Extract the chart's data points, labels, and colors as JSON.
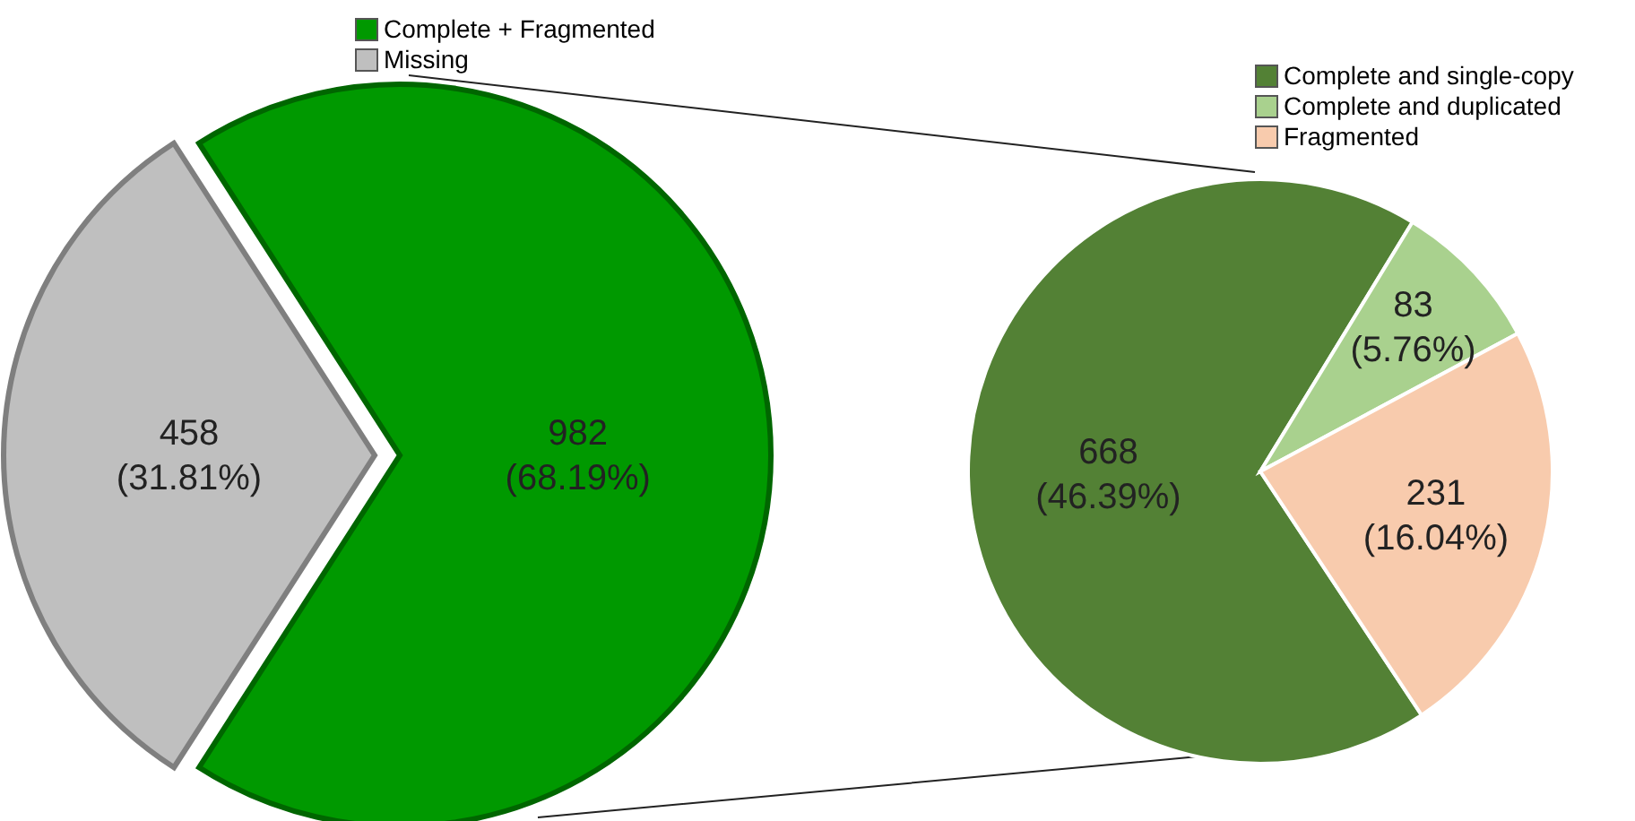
{
  "chart_data": [
    {
      "type": "pie",
      "categories": [
        "Complete + Fragmented",
        "Missing"
      ],
      "values": [
        982,
        458
      ],
      "colors": [
        "#009900",
        "#bfbfbf"
      ],
      "value_labels": [
        "982\n(68.19%)",
        "458\n(31.81%)"
      ],
      "legend": "top"
    },
    {
      "type": "pie",
      "categories": [
        "Complete and single-copy",
        "Complete and duplicated",
        "Fragmented"
      ],
      "values": [
        668,
        83,
        231
      ],
      "colors": [
        "#538135",
        "#a9d18e",
        "#f8cbad"
      ],
      "value_labels": [
        "668\n(46.39%)",
        "83\n(5.76%)",
        "231\n(16.04%)"
      ],
      "legend": "top right"
    }
  ]
}
